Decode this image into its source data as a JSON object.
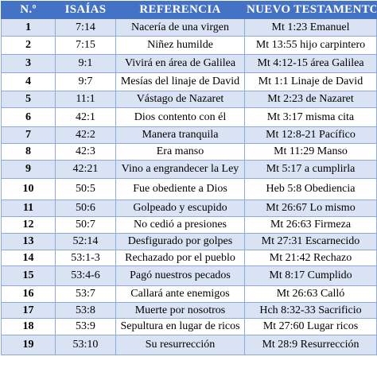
{
  "table": {
    "headers": [
      "N.º",
      "ISAÍAS",
      "REFERENCIA",
      "NUEVO TESTAMENTO"
    ],
    "rows": [
      [
        "1",
        "7:14",
        "Nacería de una virgen",
        "Mt 1:23 Emanuel"
      ],
      [
        "2",
        "7:15",
        "Niñez humilde",
        "Mt 13:55 hijo carpintero"
      ],
      [
        "3",
        "9:1",
        "Vivirá en área de Galilea",
        "Mt 4:12-15 área Galilea"
      ],
      [
        "4",
        "9:7",
        "Mesías del linaje de David",
        "Mt 1:1 Linaje de David"
      ],
      [
        "5",
        "11:1",
        "Vástago de Nazaret",
        "Mt 2:23 de Nazaret"
      ],
      [
        "6",
        "42:1",
        "Dios contento con él",
        "Mt 3:17 misma cita"
      ],
      [
        "7",
        "42:2",
        "Manera tranquila",
        "Mt 12:8-21 Pacífico"
      ],
      [
        "8",
        "42:3",
        "Era manso",
        "Mt 11:29 Manso"
      ],
      [
        "9",
        "42:21",
        "Vino a engrandecer la Ley",
        "Mt 5:17 a cumplirla"
      ],
      [
        "10",
        "50:5",
        "Fue obediente a Dios",
        "Heb 5:8 Obediencia"
      ],
      [
        "11",
        "50:6",
        "Golpeado y escupido",
        "Mt 26:67 Lo mismo"
      ],
      [
        "12",
        "50:7",
        "No cedió a presiones",
        "Mt 26:63 Firmeza"
      ],
      [
        "13",
        "52:14",
        "Desfigurado por golpes",
        "Mt 27:31 Escarnecido"
      ],
      [
        "14",
        "53:1-3",
        "Rechazado por el pueblo",
        "Mt 21:42 Rechazo"
      ],
      [
        "15",
        "53:4-6",
        "Pagó nuestros pecados",
        "Mt 8:17 Cumplido"
      ],
      [
        "16",
        "53:7",
        "Callará ante enemigos",
        "Mt 26:63 Calló"
      ],
      [
        "17",
        "53:8",
        "Muerte por nosotros",
        "Hch 8:32-33 Sacrificio"
      ],
      [
        "18",
        "53:9",
        "Sepultura en lugar de ricos",
        "Mt 27:60 Lugar ricos"
      ],
      [
        "19",
        "53:10",
        "Su resurrección",
        "Mt 28:9 Resurrección"
      ]
    ]
  },
  "colors": {
    "header_bg": "#4472c4",
    "header_text": "#ffffff",
    "band_row": "#dae3f3",
    "plain_row": "#ffffff",
    "border": "#8eaadb"
  }
}
